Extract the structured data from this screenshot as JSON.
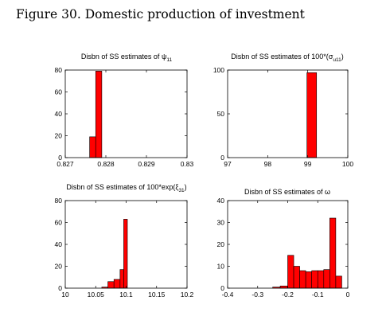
{
  "figure_title": "Figure 30. Domestic production of investment",
  "colors": {
    "bar": "#ff0000",
    "bar_stroke": "#000000",
    "axis": "#000000"
  },
  "chart_data": [
    {
      "type": "bar",
      "title_parts": [
        "Disbn of SS estimates of ",
        "ψ",
        "11",
        ""
      ],
      "xlim": [
        0.827,
        0.83
      ],
      "ylim": [
        0,
        80
      ],
      "xticks": [
        0.827,
        0.828,
        0.829,
        0.83
      ],
      "xtick_labels": [
        "0.827",
        "0.828",
        "0.829",
        "0.83"
      ],
      "yticks": [
        0,
        20,
        40,
        60,
        80
      ],
      "ytick_labels": [
        "0",
        "20",
        "40",
        "60",
        "80"
      ],
      "bin_edges": [
        0.8276,
        0.82775,
        0.8279
      ],
      "values": [
        19,
        79
      ]
    },
    {
      "type": "bar",
      "title_parts": [
        "Disbn of SS estimates of 100*(",
        "σ",
        "u11",
        ")"
      ],
      "xlim": [
        97,
        100
      ],
      "ylim": [
        0,
        100
      ],
      "xticks": [
        97,
        98,
        99,
        100
      ],
      "xtick_labels": [
        "97",
        "98",
        "99",
        "100"
      ],
      "yticks": [
        0,
        50,
        100
      ],
      "ytick_labels": [
        "0",
        "50",
        "100"
      ],
      "bin_edges": [
        98.98,
        99.22
      ],
      "values": [
        97
      ]
    },
    {
      "type": "bar",
      "title_parts": [
        "Disbn of SS estimates of 100*exp(",
        "ξ",
        "31",
        ")"
      ],
      "xlim": [
        10,
        10.2
      ],
      "ylim": [
        0,
        80
      ],
      "xticks": [
        10,
        10.05,
        10.1,
        10.15,
        10.2
      ],
      "xtick_labels": [
        "10",
        "10.05",
        "10.1",
        "10.15",
        "10.2"
      ],
      "yticks": [
        0,
        20,
        40,
        60,
        80
      ],
      "ytick_labels": [
        "0",
        "20",
        "40",
        "60",
        "80"
      ],
      "bin_edges": [
        10.06,
        10.07,
        10.08,
        10.09,
        10.096,
        10.102
      ],
      "values": [
        1,
        6,
        8,
        17,
        63
      ]
    },
    {
      "type": "bar",
      "title_parts": [
        "Disbn of SS estimates of ",
        "ω",
        "",
        ""
      ],
      "xlim": [
        -0.4,
        0
      ],
      "ylim": [
        0,
        40
      ],
      "xticks": [
        -0.4,
        -0.3,
        -0.2,
        -0.1,
        0
      ],
      "xtick_labels": [
        "-0.4",
        "-0.3",
        "-0.2",
        "-0.1",
        "0"
      ],
      "yticks": [
        0,
        10,
        20,
        30,
        40
      ],
      "ytick_labels": [
        "0",
        "10",
        "20",
        "30",
        "40"
      ],
      "bin_edges": [
        -0.25,
        -0.225,
        -0.2,
        -0.18,
        -0.16,
        -0.14,
        -0.12,
        -0.1,
        -0.08,
        -0.06,
        -0.04,
        -0.02
      ],
      "values": [
        0.5,
        1,
        15,
        10,
        8,
        7.5,
        8,
        8,
        8.5,
        32,
        5.5
      ]
    }
  ]
}
